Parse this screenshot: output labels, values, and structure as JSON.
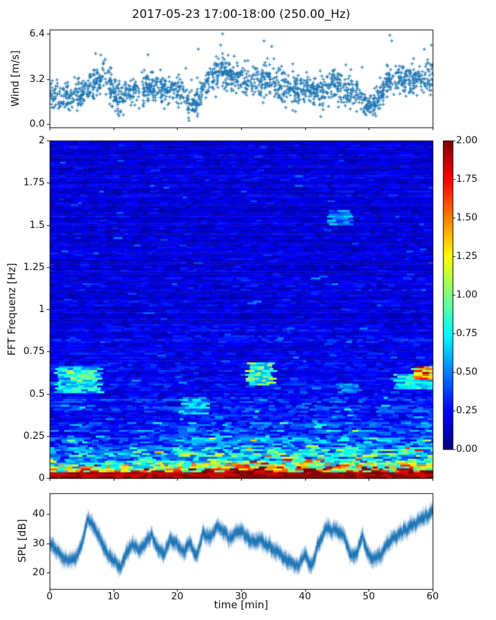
{
  "figure": {
    "title": "2017-05-23 17:00-18:00 (250.00_Hz)",
    "background": "#ffffff",
    "accent_color": "#1f77b4"
  },
  "chart_data": [
    {
      "type": "scatter",
      "name": "wind-speed",
      "ylabel": "Wind [m/s]",
      "marker": "+",
      "color": "#1f77b4",
      "xlim": [
        0,
        60
      ],
      "ylim": [
        -0.25,
        6.7
      ],
      "yticks": [
        {
          "value": 0.0,
          "label": "0.0"
        },
        {
          "value": 3.2,
          "label": "3.2"
        },
        {
          "value": 6.4,
          "label": "6.4"
        }
      ],
      "x_step_min": 1,
      "mean_wind_mps": [
        2.1,
        2.0,
        1.9,
        1.9,
        2.2,
        2.3,
        2.5,
        2.7,
        3.2,
        3.3,
        2.2,
        1.6,
        2.2,
        2.4,
        2.4,
        2.5,
        2.6,
        2.7,
        2.5,
        2.4,
        2.3,
        1.9,
        1.3,
        1.6,
        2.6,
        3.0,
        3.5,
        3.7,
        3.5,
        3.3,
        3.2,
        3.1,
        3.0,
        3.0,
        3.1,
        3.0,
        2.6,
        2.5,
        2.4,
        2.4,
        2.6,
        2.5,
        2.4,
        2.0,
        2.8,
        2.8,
        2.4,
        2.3,
        2.2,
        1.7,
        1.2,
        1.5,
        2.0,
        3.3,
        3.3,
        3.2,
        3.0,
        3.0,
        3.1,
        3.4,
        3.4
      ],
      "scatter_spread_mps": 0.55,
      "n_points": 1750,
      "peaks": [
        [
          7.2,
          5.0
        ],
        [
          26.8,
          5.6
        ],
        [
          27.1,
          6.4
        ],
        [
          33.6,
          5.9
        ],
        [
          34.8,
          5.5
        ],
        [
          53.3,
          6.3
        ],
        [
          53.6,
          5.9
        ],
        [
          58.7,
          5.3
        ],
        [
          59.8,
          5.6
        ]
      ]
    },
    {
      "type": "heatmap",
      "name": "fft-spectrogram",
      "ylabel": "FFT Frequenz [Hz]",
      "xlim": [
        0,
        60
      ],
      "ylim": [
        0,
        2
      ],
      "yticks": [
        {
          "value": 0,
          "label": "0"
        },
        {
          "value": 0.25,
          "label": "0.25"
        },
        {
          "value": 0.5,
          "label": "0.5"
        },
        {
          "value": 0.75,
          "label": "0.75"
        },
        {
          "value": 1,
          "label": "1"
        },
        {
          "value": 1.25,
          "label": "1.25"
        },
        {
          "value": 1.5,
          "label": "1.5"
        },
        {
          "value": 1.75,
          "label": "1.75"
        },
        {
          "value": 2,
          "label": "2"
        }
      ],
      "colormap": "jet",
      "clim": [
        0,
        2
      ],
      "colorbar_ticks": [
        {
          "value": 0.0,
          "label": "0.00"
        },
        {
          "value": 0.25,
          "label": "0.25"
        },
        {
          "value": 0.5,
          "label": "0.50"
        },
        {
          "value": 0.75,
          "label": "0.75"
        },
        {
          "value": 1.0,
          "label": "1.00"
        },
        {
          "value": 1.25,
          "label": "1.25"
        },
        {
          "value": 1.5,
          "label": "1.50"
        },
        {
          "value": 1.75,
          "label": "1.75"
        },
        {
          "value": 2.0,
          "label": "2.00"
        }
      ],
      "freq_profile": [
        [
          0.0,
          1.95
        ],
        [
          0.015,
          1.8
        ],
        [
          0.03,
          1.5
        ],
        [
          0.05,
          1.15
        ],
        [
          0.07,
          0.95
        ],
        [
          0.1,
          0.75
        ],
        [
          0.14,
          0.55
        ],
        [
          0.2,
          0.42
        ],
        [
          0.28,
          0.33
        ],
        [
          0.38,
          0.27
        ],
        [
          0.5,
          0.22
        ],
        [
          0.65,
          0.2
        ],
        [
          0.85,
          0.18
        ],
        [
          1.1,
          0.17
        ],
        [
          1.4,
          0.16
        ],
        [
          2.0,
          0.15
        ]
      ],
      "time_profile": [
        0.75,
        0.8,
        0.85,
        0.8,
        0.75,
        0.85,
        0.95,
        0.9,
        1.0,
        1.05,
        1.0,
        1.05,
        1.1,
        1.05,
        1.1,
        1.0,
        1.1,
        1.05,
        1.15,
        1.05,
        1.1,
        1.05,
        1.1,
        1.15
      ],
      "features": [
        {
          "t": [
            1,
            8
          ],
          "f": [
            0.5,
            0.66
          ],
          "value": 0.65
        },
        {
          "t": [
            3,
            7
          ],
          "f": [
            0.57,
            0.64
          ],
          "value": 0.85
        },
        {
          "t": [
            20.5,
            24.5
          ],
          "f": [
            0.38,
            0.48
          ],
          "value": 0.6
        },
        {
          "t": [
            31,
            35
          ],
          "f": [
            0.55,
            0.68
          ],
          "value": 0.85
        },
        {
          "t": [
            43.8,
            47.2
          ],
          "f": [
            1.5,
            1.59
          ],
          "value": 0.5
        },
        {
          "t": [
            45.5,
            48.5
          ],
          "f": [
            0.5,
            0.56
          ],
          "value": 0.5
        },
        {
          "t": [
            54,
            60
          ],
          "f": [
            0.52,
            0.62
          ],
          "value": 0.7
        },
        {
          "t": [
            57,
            60
          ],
          "f": [
            0.58,
            0.66
          ],
          "value": 1.45
        }
      ]
    },
    {
      "type": "line",
      "name": "spl",
      "ylabel": "SPL [dB]",
      "xlabel": "time [min]",
      "color": "#1f77b4",
      "xlim": [
        0,
        60
      ],
      "ylim": [
        14.5,
        47
      ],
      "yticks": [
        {
          "value": 20,
          "label": "20"
        },
        {
          "value": 30,
          "label": "30"
        },
        {
          "value": 40,
          "label": "40"
        }
      ],
      "xticks": [
        {
          "value": 0,
          "label": "0"
        },
        {
          "value": 10,
          "label": "10"
        },
        {
          "value": 20,
          "label": "20"
        },
        {
          "value": 30,
          "label": "30"
        },
        {
          "value": 40,
          "label": "40"
        },
        {
          "value": 50,
          "label": "50"
        },
        {
          "value": 60,
          "label": "60"
        }
      ],
      "x_step_min": 1,
      "mean_spl_db": [
        30,
        28,
        26,
        25,
        24,
        28,
        38,
        35,
        29,
        26,
        24,
        23,
        27,
        31,
        28,
        30,
        33,
        29,
        27,
        31,
        29,
        26,
        31,
        26,
        34,
        32,
        35,
        33,
        31,
        33,
        33,
        32,
        30,
        31,
        29,
        28,
        26,
        24,
        23,
        23,
        26,
        22,
        30,
        34,
        35,
        34,
        33,
        26,
        25,
        31,
        26,
        25,
        26,
        30,
        32,
        34,
        35,
        36,
        37,
        39,
        41
      ],
      "noise_db": 1.1,
      "halo_noise_db": 2.4
    }
  ]
}
